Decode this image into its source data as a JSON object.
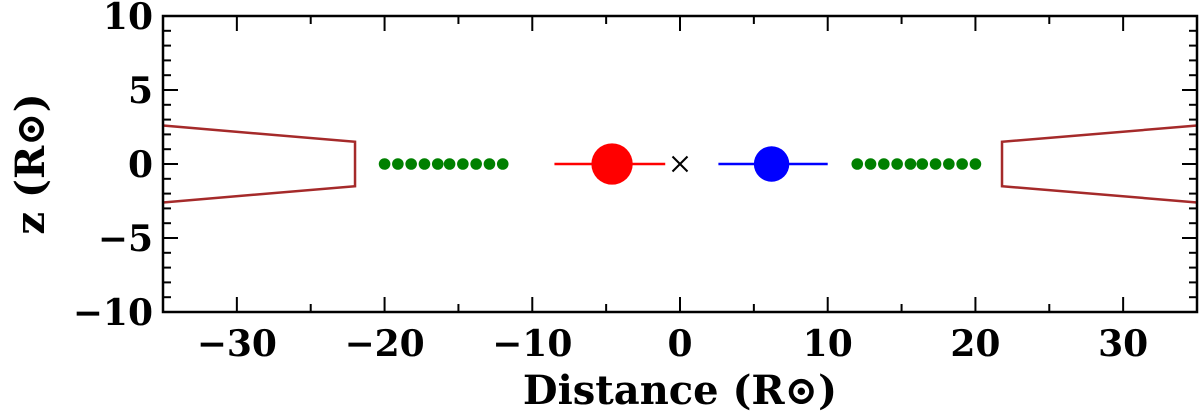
{
  "chart_data": {
    "type": "scatter",
    "title": "",
    "xlabel": "Distance (R⊙)",
    "ylabel": "z (R⊙)",
    "xlim": [
      -35,
      35
    ],
    "ylim": [
      -10,
      10
    ],
    "grid": false,
    "xticks": [
      -30,
      -20,
      -10,
      0,
      10,
      20,
      30
    ],
    "xtick_labels": [
      "−30",
      "−20",
      "−10",
      "0",
      "10",
      "20",
      "30"
    ],
    "yticks": [
      -10,
      -5,
      0,
      5,
      10
    ],
    "ytick_labels": [
      "−10",
      "−5",
      "0",
      "5",
      "10"
    ],
    "x_minor_step": 5,
    "y_minor_step": 1,
    "center_of_mass": {
      "x": 0,
      "y": 0,
      "marker": "x",
      "color": "#000000"
    },
    "stars": [
      {
        "x": -4.6,
        "y": 0,
        "radius": 1.4,
        "color": "#ff0000",
        "line_x": [
          -8.5,
          -1.0
        ]
      },
      {
        "x": 6.2,
        "y": 0,
        "radius": 1.2,
        "color": "#0000ff",
        "line_x": [
          2.6,
          10.0
        ]
      }
    ],
    "point_series": [
      {
        "color": "#008000",
        "x": [
          -20,
          -19.1,
          -18.2,
          -17.3,
          -16.4,
          -15.6,
          -14.7,
          -13.8,
          -12.9,
          -12
        ],
        "y": [
          0,
          0,
          0,
          0,
          0,
          0,
          0,
          0,
          0,
          0
        ]
      },
      {
        "color": "#008000",
        "x": [
          12,
          12.9,
          13.8,
          14.7,
          15.6,
          16.4,
          17.3,
          18.2,
          19.1,
          20
        ],
        "y": [
          0,
          0,
          0,
          0,
          0,
          0,
          0,
          0,
          0,
          0
        ]
      }
    ],
    "disk_outlines": [
      {
        "color": "#a52a2a",
        "x": [
          -35,
          -22,
          -22,
          -35
        ],
        "y": [
          2.6,
          1.5,
          -1.5,
          -2.6
        ]
      },
      {
        "color": "#a52a2a",
        "x": [
          35,
          21.8,
          21.8,
          35
        ],
        "y": [
          2.6,
          1.5,
          -1.5,
          -2.6
        ]
      }
    ]
  }
}
